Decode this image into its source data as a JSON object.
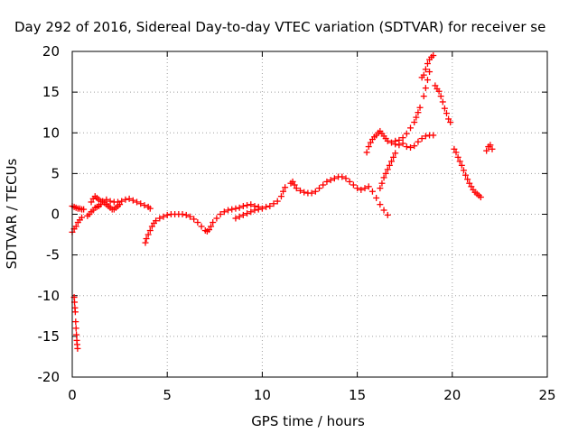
{
  "chart_data": {
    "type": "scatter",
    "title": "Day 292 of 2016, Sidereal Day-to-day VTEC variation (SDTVAR) for receiver se",
    "xlabel": "GPS time / hours",
    "ylabel": "SDTVAR / TECUs",
    "xlim": [
      0,
      25
    ],
    "ylim": [
      -20,
      20
    ],
    "xticks": [
      0,
      5,
      10,
      15,
      20,
      25
    ],
    "yticks": [
      -20,
      -15,
      -10,
      -5,
      0,
      5,
      10,
      15,
      20
    ],
    "grid": true,
    "marker": "plus",
    "color": "#ff0000",
    "series": [
      {
        "points": [
          [
            0.0,
            -2.2
          ],
          [
            0.1,
            -1.8
          ],
          [
            0.2,
            -1.5
          ],
          [
            0.3,
            -1.0
          ],
          [
            0.4,
            -0.7
          ],
          [
            0.5,
            -0.4
          ],
          [
            0.0,
            1.0
          ],
          [
            0.1,
            0.9
          ],
          [
            0.2,
            0.8
          ],
          [
            0.3,
            0.7
          ],
          [
            0.4,
            0.7
          ],
          [
            0.5,
            0.6
          ],
          [
            0.6,
            0.6
          ],
          [
            0.1,
            -10.2
          ],
          [
            0.12,
            -10.8
          ],
          [
            0.14,
            -11.5
          ],
          [
            0.16,
            -12.0
          ],
          [
            0.18,
            -13.2
          ],
          [
            0.2,
            -14.0
          ],
          [
            0.22,
            -14.8
          ],
          [
            0.24,
            -15.5
          ],
          [
            0.26,
            -16.0
          ],
          [
            0.28,
            -16.5
          ],
          [
            0.8,
            -0.2
          ],
          [
            0.9,
            0.0
          ],
          [
            1.0,
            0.3
          ],
          [
            1.1,
            0.5
          ],
          [
            1.2,
            0.8
          ],
          [
            1.3,
            0.9
          ],
          [
            1.4,
            1.0
          ],
          [
            1.5,
            1.2
          ],
          [
            1.0,
            1.5
          ],
          [
            1.1,
            1.9
          ],
          [
            1.2,
            2.2
          ],
          [
            1.3,
            2.0
          ],
          [
            1.4,
            1.8
          ],
          [
            1.5,
            1.6
          ],
          [
            1.6,
            1.6
          ],
          [
            1.7,
            1.4
          ],
          [
            1.8,
            1.2
          ],
          [
            1.9,
            1.0
          ],
          [
            2.0,
            0.8
          ],
          [
            2.1,
            0.6
          ],
          [
            2.2,
            0.6
          ],
          [
            2.3,
            0.8
          ],
          [
            2.4,
            1.0
          ],
          [
            2.5,
            1.2
          ],
          [
            1.8,
            1.8
          ],
          [
            2.0,
            1.6
          ],
          [
            2.2,
            1.5
          ],
          [
            2.4,
            1.5
          ],
          [
            2.6,
            1.6
          ],
          [
            2.8,
            1.8
          ],
          [
            3.0,
            1.9
          ],
          [
            3.2,
            1.7
          ],
          [
            3.4,
            1.5
          ],
          [
            3.6,
            1.3
          ],
          [
            3.8,
            1.1
          ],
          [
            4.0,
            0.9
          ],
          [
            4.1,
            0.7
          ],
          [
            3.85,
            -3.5
          ],
          [
            3.9,
            -3.0
          ],
          [
            4.0,
            -2.5
          ],
          [
            4.1,
            -2.0
          ],
          [
            4.2,
            -1.5
          ],
          [
            4.3,
            -1.1
          ],
          [
            4.4,
            -0.8
          ],
          [
            4.6,
            -0.5
          ],
          [
            4.8,
            -0.3
          ],
          [
            5.0,
            -0.1
          ],
          [
            5.2,
            0.0
          ],
          [
            5.4,
            0.0
          ],
          [
            5.6,
            0.0
          ],
          [
            5.8,
            0.0
          ],
          [
            6.0,
            -0.1
          ],
          [
            6.2,
            -0.3
          ],
          [
            6.4,
            -0.6
          ],
          [
            6.6,
            -1.0
          ],
          [
            6.8,
            -1.5
          ],
          [
            7.0,
            -2.0
          ],
          [
            7.1,
            -2.1
          ],
          [
            7.2,
            -1.9
          ],
          [
            7.3,
            -1.5
          ],
          [
            7.4,
            -1.0
          ],
          [
            7.6,
            -0.5
          ],
          [
            7.8,
            0.0
          ],
          [
            8.0,
            0.3
          ],
          [
            8.2,
            0.5
          ],
          [
            8.4,
            0.6
          ],
          [
            8.6,
            0.7
          ],
          [
            8.8,
            0.8
          ],
          [
            9.0,
            1.0
          ],
          [
            9.2,
            1.1
          ],
          [
            9.4,
            1.2
          ],
          [
            9.6,
            1.0
          ],
          [
            9.8,
            0.9
          ],
          [
            8.6,
            -0.5
          ],
          [
            8.8,
            -0.3
          ],
          [
            9.0,
            -0.1
          ],
          [
            9.2,
            0.1
          ],
          [
            9.4,
            0.3
          ],
          [
            9.6,
            0.5
          ],
          [
            9.8,
            0.6
          ],
          [
            10.0,
            0.7
          ],
          [
            10.2,
            0.9
          ],
          [
            10.4,
            1.0
          ],
          [
            10.6,
            1.3
          ],
          [
            10.8,
            1.6
          ],
          [
            11.0,
            2.2
          ],
          [
            11.1,
            2.8
          ],
          [
            11.2,
            3.3
          ],
          [
            11.5,
            3.8
          ],
          [
            11.6,
            4.0
          ],
          [
            11.7,
            3.6
          ],
          [
            11.8,
            3.2
          ],
          [
            12.0,
            2.9
          ],
          [
            12.2,
            2.7
          ],
          [
            12.4,
            2.6
          ],
          [
            12.6,
            2.6
          ],
          [
            12.8,
            2.8
          ],
          [
            13.0,
            3.2
          ],
          [
            13.2,
            3.6
          ],
          [
            13.4,
            4.0
          ],
          [
            13.6,
            4.2
          ],
          [
            13.8,
            4.4
          ],
          [
            14.0,
            4.6
          ],
          [
            14.2,
            4.6
          ],
          [
            14.4,
            4.4
          ],
          [
            14.6,
            4.0
          ],
          [
            14.8,
            3.6
          ],
          [
            15.0,
            3.2
          ],
          [
            15.2,
            3.0
          ],
          [
            15.4,
            3.2
          ],
          [
            15.6,
            3.4
          ],
          [
            15.8,
            2.8
          ],
          [
            16.0,
            2.0
          ],
          [
            16.2,
            1.2
          ],
          [
            16.4,
            0.5
          ],
          [
            16.6,
            -0.1
          ],
          [
            15.5,
            7.6
          ],
          [
            15.6,
            8.3
          ],
          [
            15.7,
            8.8
          ],
          [
            15.8,
            9.2
          ],
          [
            15.9,
            9.5
          ],
          [
            16.0,
            9.7
          ],
          [
            16.1,
            10.0
          ],
          [
            16.2,
            10.2
          ],
          [
            16.3,
            9.9
          ],
          [
            16.4,
            9.6
          ],
          [
            16.5,
            9.3
          ],
          [
            16.6,
            9.0
          ],
          [
            16.8,
            8.8
          ],
          [
            17.0,
            8.6
          ],
          [
            17.2,
            8.5
          ],
          [
            16.2,
            3.2
          ],
          [
            16.3,
            3.8
          ],
          [
            16.4,
            4.5
          ],
          [
            16.5,
            5.0
          ],
          [
            16.6,
            5.5
          ],
          [
            16.7,
            6.0
          ],
          [
            16.8,
            6.5
          ],
          [
            16.9,
            7.0
          ],
          [
            17.0,
            7.5
          ],
          [
            17.0,
            9.0
          ],
          [
            17.2,
            9.1
          ],
          [
            17.4,
            9.4
          ],
          [
            17.6,
            9.9
          ],
          [
            17.8,
            10.6
          ],
          [
            18.0,
            11.3
          ],
          [
            18.1,
            11.9
          ],
          [
            18.2,
            12.5
          ],
          [
            18.3,
            13.1
          ],
          [
            17.4,
            8.7
          ],
          [
            17.6,
            8.3
          ],
          [
            17.8,
            8.2
          ],
          [
            18.0,
            8.4
          ],
          [
            18.2,
            8.9
          ],
          [
            18.4,
            9.3
          ],
          [
            18.6,
            9.6
          ],
          [
            18.8,
            9.7
          ],
          [
            19.0,
            9.7
          ],
          [
            18.4,
            16.8
          ],
          [
            18.5,
            17.1
          ],
          [
            18.6,
            17.8
          ],
          [
            18.7,
            18.5
          ],
          [
            18.8,
            19.0
          ],
          [
            18.9,
            19.3
          ],
          [
            19.0,
            19.5
          ],
          [
            18.5,
            14.5
          ],
          [
            18.6,
            15.5
          ],
          [
            18.7,
            16.5
          ],
          [
            18.8,
            17.5
          ],
          [
            19.1,
            15.8
          ],
          [
            19.2,
            15.4
          ],
          [
            19.3,
            15.1
          ],
          [
            19.4,
            14.5
          ],
          [
            19.5,
            13.8
          ],
          [
            19.6,
            13.0
          ],
          [
            19.7,
            12.4
          ],
          [
            19.8,
            11.7
          ],
          [
            19.9,
            11.3
          ],
          [
            20.1,
            8.0
          ],
          [
            20.2,
            7.6
          ],
          [
            20.3,
            7.0
          ],
          [
            20.4,
            6.5
          ],
          [
            20.5,
            6.0
          ],
          [
            20.6,
            5.4
          ],
          [
            20.7,
            4.8
          ],
          [
            20.8,
            4.3
          ],
          [
            20.9,
            3.8
          ],
          [
            21.0,
            3.4
          ],
          [
            21.1,
            3.0
          ],
          [
            21.2,
            2.7
          ],
          [
            21.3,
            2.5
          ],
          [
            21.4,
            2.3
          ],
          [
            21.5,
            2.1
          ],
          [
            21.8,
            7.8
          ],
          [
            21.9,
            8.3
          ],
          [
            22.0,
            8.5
          ],
          [
            22.1,
            8.0
          ]
        ]
      }
    ]
  }
}
